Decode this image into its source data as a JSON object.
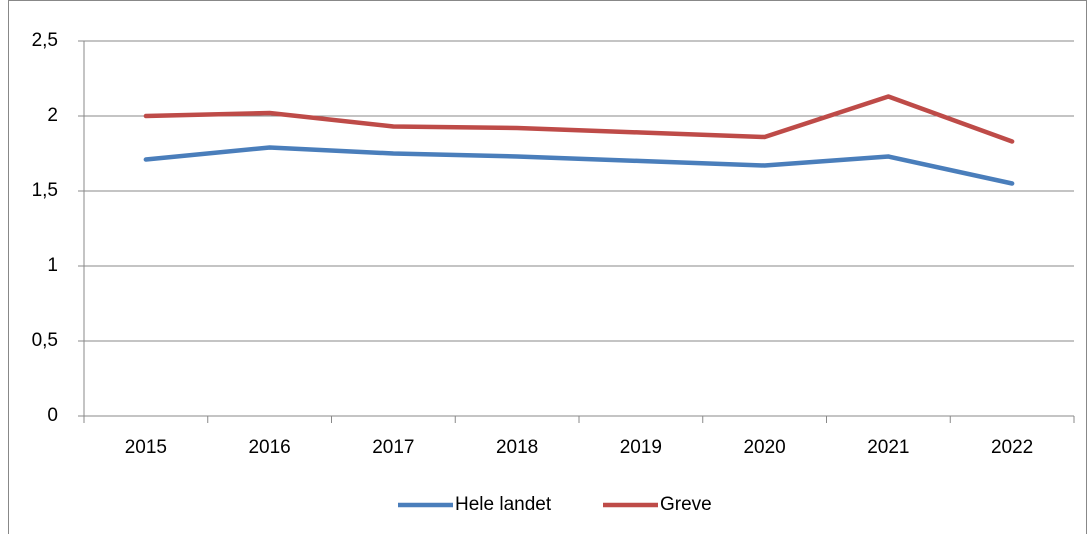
{
  "chart_data": {
    "type": "line",
    "categories": [
      "2015",
      "2016",
      "2017",
      "2018",
      "2019",
      "2020",
      "2021",
      "2022"
    ],
    "series": [
      {
        "name": "Hele landet",
        "color": "#4a7ebb",
        "values": [
          1.71,
          1.79,
          1.75,
          1.73,
          1.7,
          1.67,
          1.73,
          1.55
        ]
      },
      {
        "name": "Greve",
        "color": "#be4b48",
        "values": [
          2.0,
          2.02,
          1.93,
          1.92,
          1.89,
          1.86,
          2.13,
          1.83
        ]
      }
    ],
    "ylim": [
      0,
      2.5
    ],
    "yticks": [
      0,
      {
        "value": 0.5,
        "label": "0,5"
      },
      1,
      {
        "value": 1.5,
        "label": "1,5"
      },
      2,
      {
        "value": 2.5,
        "label": "2,5"
      }
    ],
    "grid": true,
    "legend": "bottom"
  }
}
